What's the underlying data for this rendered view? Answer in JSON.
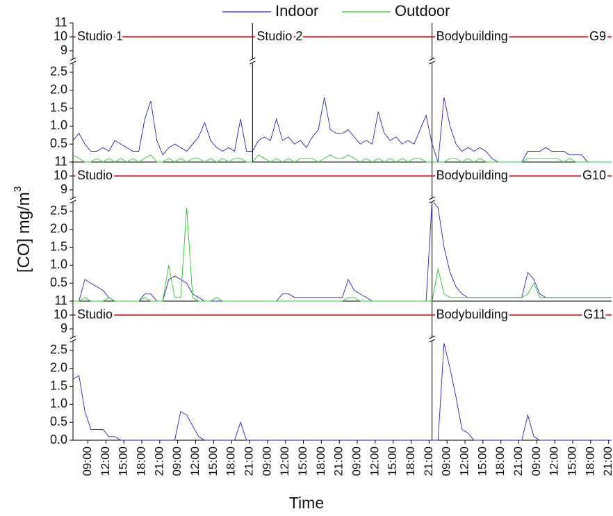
{
  "figure": {
    "ylabel": "[CO] mg/m",
    "ylabel_superscript": "3",
    "xlabel": "Time"
  },
  "chart_data": [
    {
      "type": "line",
      "group": "G9",
      "limit": 10,
      "limit_color": "#dd0000",
      "panels": [
        {
          "label": "Studio 1",
          "xlim": [
            0,
            30
          ]
        },
        {
          "label": "Studio 2",
          "xlim": [
            30,
            60
          ]
        },
        {
          "label": "Bodybuilding",
          "xlim": [
            60,
            90
          ]
        }
      ],
      "xlim": [
        0,
        90
      ],
      "x": [
        0,
        1,
        2,
        3,
        4,
        5,
        6,
        7,
        8,
        9,
        10,
        11,
        12,
        13,
        14,
        15,
        16,
        17,
        18,
        19,
        20,
        21,
        22,
        23,
        24,
        25,
        26,
        27,
        28,
        29,
        30,
        31,
        32,
        33,
        34,
        35,
        36,
        37,
        38,
        39,
        40,
        41,
        42,
        43,
        44,
        45,
        46,
        47,
        48,
        49,
        50,
        51,
        52,
        53,
        54,
        55,
        56,
        57,
        58,
        59,
        60,
        61,
        62,
        63,
        64,
        65,
        66,
        67,
        68,
        69,
        70,
        71,
        72,
        73,
        74,
        75,
        76,
        77,
        78,
        79,
        80,
        81,
        82,
        83,
        84,
        85,
        86,
        87,
        88,
        89,
        90
      ],
      "ylim_upper": [
        8.5,
        11
      ],
      "yticks_upper": [
        9,
        10,
        11
      ],
      "ylim": [
        0,
        2.75
      ],
      "yticks": [
        0.5,
        {
          "value": 1,
          "label": "1.0"
        },
        1.5,
        {
          "value": 2,
          "label": "2.0"
        },
        2.5
      ],
      "series": [
        {
          "name": "Indoor",
          "color": "#2222cc",
          "values": [
            0.6,
            0.8,
            0.5,
            0.3,
            0.3,
            0.4,
            0.3,
            0.6,
            0.5,
            0.4,
            0.3,
            0.3,
            1.2,
            1.7,
            0.6,
            0.2,
            0.4,
            0.5,
            0.4,
            0.3,
            0.5,
            0.7,
            1.1,
            0.6,
            0.4,
            0.3,
            0.4,
            0.3,
            1.2,
            0.3,
            0.3,
            0.6,
            0.7,
            0.6,
            1.2,
            0.6,
            0.7,
            0.5,
            0.6,
            0.4,
            0.7,
            0.9,
            1.8,
            0.9,
            0.8,
            0.8,
            0.9,
            0.7,
            0.5,
            0.6,
            0.5,
            1.4,
            0.8,
            0.6,
            0.7,
            0.5,
            0.6,
            0.5,
            0.9,
            1.3,
            0.5,
            0,
            1.8,
            1.0,
            0.5,
            0.3,
            0.4,
            0.3,
            0.4,
            0.3,
            0.1,
            0,
            0,
            0,
            0,
            0,
            0.3,
            0.3,
            0.3,
            0.4,
            0.3,
            0.3,
            0.3,
            0.2,
            0.2,
            0.2,
            0,
            0,
            0,
            0,
            0
          ]
        },
        {
          "name": "Outdoor",
          "color": "#22cc22",
          "values": [
            0.2,
            0.1,
            0,
            0,
            0.1,
            0,
            0.1,
            0,
            0.1,
            0,
            0.1,
            0,
            0.1,
            0.2,
            0,
            0,
            0.1,
            0,
            0.1,
            0,
            0.1,
            0.1,
            0,
            0.1,
            0,
            0.1,
            0,
            0.1,
            0.1,
            0,
            0,
            0.2,
            0.1,
            0,
            0.1,
            0,
            0.1,
            0,
            0.1,
            0.1,
            0.1,
            0,
            0.1,
            0.2,
            0.1,
            0.1,
            0.2,
            0.1,
            0,
            0.1,
            0,
            0.1,
            0,
            0.1,
            0,
            0.1,
            0,
            0.1,
            0.1,
            0,
            0,
            0,
            0,
            0.1,
            0.1,
            0,
            0.1,
            0,
            0.1,
            0,
            0,
            0,
            0,
            0,
            0,
            0,
            0.1,
            0.1,
            0.1,
            0.1,
            0.1,
            0.1,
            0,
            0.1,
            0,
            0,
            0,
            0,
            0,
            0,
            0
          ]
        }
      ]
    },
    {
      "type": "line",
      "group": "G10",
      "limit": 10,
      "limit_color": "#dd0000",
      "panels": [
        {
          "label": "Studio",
          "xlim": [
            0,
            60
          ]
        },
        {
          "label": "Bodybuilding",
          "xlim": [
            60,
            90
          ]
        }
      ],
      "xlim": [
        0,
        90
      ],
      "x": [
        0,
        1,
        2,
        3,
        4,
        5,
        6,
        7,
        8,
        9,
        10,
        11,
        12,
        13,
        14,
        15,
        16,
        17,
        18,
        19,
        20,
        21,
        22,
        23,
        24,
        25,
        26,
        27,
        28,
        29,
        30,
        31,
        32,
        33,
        34,
        35,
        36,
        37,
        38,
        39,
        40,
        41,
        42,
        43,
        44,
        45,
        46,
        47,
        48,
        49,
        50,
        51,
        52,
        53,
        54,
        55,
        56,
        57,
        58,
        59,
        60,
        61,
        62,
        63,
        64,
        65,
        66,
        67,
        68,
        69,
        70,
        71,
        72,
        73,
        74,
        75,
        76,
        77,
        78,
        79,
        80,
        81,
        82,
        83,
        84,
        85,
        86,
        87,
        88,
        89,
        90
      ],
      "ylim_upper": [
        8.5,
        11
      ],
      "yticks_upper": [
        9,
        10,
        11
      ],
      "ylim": [
        0,
        2.75
      ],
      "yticks": [
        0.5,
        {
          "value": 1,
          "label": "1.0"
        },
        1.5,
        {
          "value": 2,
          "label": "2.0"
        },
        2.5
      ],
      "series": [
        {
          "name": "Indoor",
          "color": "#2222cc",
          "values": [
            0,
            0,
            0.6,
            0.5,
            0.4,
            0.3,
            0.1,
            0,
            0,
            0,
            0,
            0,
            0.2,
            0.2,
            0,
            0,
            0.6,
            0.7,
            0.6,
            0.5,
            0.2,
            0.1,
            0,
            0,
            0,
            0,
            0,
            0,
            0,
            0,
            0,
            0,
            0,
            0,
            0,
            0.2,
            0.2,
            0.1,
            0.1,
            0.1,
            0.1,
            0.1,
            0.1,
            0.1,
            0.1,
            0.1,
            0.6,
            0.3,
            0.2,
            0.1,
            0,
            0,
            0,
            0,
            0,
            0,
            0,
            0,
            0,
            0,
            2.8,
            2.6,
            1.5,
            0.8,
            0.4,
            0.2,
            0.1,
            0.1,
            0.1,
            0.1,
            0.1,
            0.1,
            0.1,
            0.1,
            0.1,
            0.1,
            0.8,
            0.6,
            0.2,
            0.1,
            0.1,
            0.1,
            0.1,
            0.1,
            0.1,
            0.1,
            0.1,
            0.1,
            0.1,
            0.1,
            0.1
          ]
        },
        {
          "name": "Outdoor",
          "color": "#22cc22",
          "values": [
            0,
            0,
            0.1,
            0,
            0,
            0,
            0.1,
            0,
            0,
            0,
            0,
            0,
            0.1,
            0,
            0,
            0,
            1.0,
            0.1,
            0.1,
            2.6,
            0.1,
            0,
            0,
            0,
            0.1,
            0,
            0,
            0,
            0,
            0,
            0,
            0,
            0,
            0,
            0,
            0,
            0,
            0,
            0,
            0,
            0,
            0,
            0,
            0,
            0,
            0,
            0.1,
            0.1,
            0,
            0,
            0,
            0,
            0,
            0,
            0,
            0,
            0,
            0,
            0,
            0,
            0,
            0.9,
            0.2,
            0.1,
            0.1,
            0.1,
            0.1,
            0.1,
            0.1,
            0.1,
            0.1,
            0.1,
            0.1,
            0.1,
            0.1,
            0.1,
            0.2,
            0.5,
            0.1,
            0.1,
            0.1,
            0.1,
            0.1,
            0.1,
            0.1,
            0.1,
            0.1,
            0.1,
            0.1,
            0.1,
            0.1
          ]
        }
      ]
    },
    {
      "type": "line",
      "group": "G11",
      "limit": 10,
      "limit_color": "#dd0000",
      "panels": [
        {
          "label": "Studio",
          "xlim": [
            0,
            60
          ]
        },
        {
          "label": "Bodybuilding",
          "xlim": [
            60,
            90
          ]
        }
      ],
      "xlim": [
        0,
        90
      ],
      "x": [
        0,
        1,
        2,
        3,
        4,
        5,
        6,
        7,
        8,
        9,
        10,
        11,
        12,
        13,
        14,
        15,
        16,
        17,
        18,
        19,
        20,
        21,
        22,
        23,
        24,
        25,
        26,
        27,
        28,
        29,
        30,
        31,
        32,
        33,
        34,
        35,
        36,
        37,
        38,
        39,
        40,
        41,
        42,
        43,
        44,
        45,
        46,
        47,
        48,
        49,
        50,
        51,
        52,
        53,
        54,
        55,
        56,
        57,
        58,
        59,
        60,
        61,
        62,
        63,
        64,
        65,
        66,
        67,
        68,
        69,
        70,
        71,
        72,
        73,
        74,
        75,
        76,
        77,
        78,
        79,
        80,
        81,
        82,
        83,
        84,
        85,
        86,
        87,
        88,
        89,
        90
      ],
      "xticks": [
        {
          "value": 2.5,
          "label": "09:00"
        },
        {
          "value": 5.5,
          "label": "12:00"
        },
        {
          "value": 8.5,
          "label": "15:00"
        },
        {
          "value": 11.5,
          "label": "18:00"
        },
        {
          "value": 14.5,
          "label": "21:00"
        },
        {
          "value": 17.5,
          "label": "09:00"
        },
        {
          "value": 20.5,
          "label": "12:00"
        },
        {
          "value": 23.5,
          "label": "15:00"
        },
        {
          "value": 26.5,
          "label": "18:00"
        },
        {
          "value": 29.5,
          "label": "21:00"
        },
        {
          "value": 32.5,
          "label": "09:00"
        },
        {
          "value": 35.5,
          "label": "12:00"
        },
        {
          "value": 38.5,
          "label": "15:00"
        },
        {
          "value": 41.5,
          "label": "18:00"
        },
        {
          "value": 44.5,
          "label": "21:00"
        },
        {
          "value": 47.5,
          "label": "09:00"
        },
        {
          "value": 50.5,
          "label": "12:00"
        },
        {
          "value": 53.5,
          "label": "15:00"
        },
        {
          "value": 56.5,
          "label": "18:00"
        },
        {
          "value": 59.5,
          "label": "21:00"
        },
        {
          "value": 62.5,
          "label": "09:00"
        },
        {
          "value": 65.5,
          "label": "12:00"
        },
        {
          "value": 68.5,
          "label": "15:00"
        },
        {
          "value": 71.5,
          "label": "18:00"
        },
        {
          "value": 74.5,
          "label": "21:00"
        },
        {
          "value": 77.5,
          "label": "09:00"
        },
        {
          "value": 80.5,
          "label": "12:00"
        },
        {
          "value": 83.5,
          "label": "15:00"
        },
        {
          "value": 86.5,
          "label": "18:00"
        },
        {
          "value": 89.5,
          "label": "21:00"
        }
      ],
      "ylim_upper": [
        8.5,
        11
      ],
      "yticks_upper": [
        9,
        10,
        11
      ],
      "ylim": [
        0,
        2.75
      ],
      "yticks": [
        {
          "value": 0,
          "label": "0.0"
        },
        0.5,
        {
          "value": 1,
          "label": "1.0"
        },
        1.5,
        {
          "value": 2,
          "label": "2.0"
        },
        2.5
      ],
      "series": [
        {
          "name": "Indoor",
          "color": "#2222cc",
          "values": [
            1.7,
            1.8,
            0.8,
            0.3,
            0.3,
            0.3,
            0.1,
            0.1,
            0,
            0,
            0,
            0,
            0,
            0,
            0,
            0,
            0,
            0,
            0.8,
            0.7,
            0.4,
            0.1,
            0,
            0,
            0,
            0,
            0,
            0,
            0.5,
            0,
            0,
            0,
            0,
            0,
            0,
            0,
            0,
            0,
            0,
            0,
            0,
            0,
            0,
            0,
            0,
            0,
            0,
            0,
            0,
            0,
            0,
            0,
            0,
            0,
            0,
            0,
            0,
            0,
            0,
            0,
            0,
            0,
            2.7,
            2.0,
            1.2,
            0.3,
            0.2,
            0,
            0,
            0,
            0,
            0,
            0,
            0,
            0,
            0,
            0.7,
            0.1,
            0,
            0,
            0,
            0,
            0,
            0,
            0,
            0,
            0,
            0,
            0,
            0,
            0
          ]
        }
      ]
    }
  ]
}
